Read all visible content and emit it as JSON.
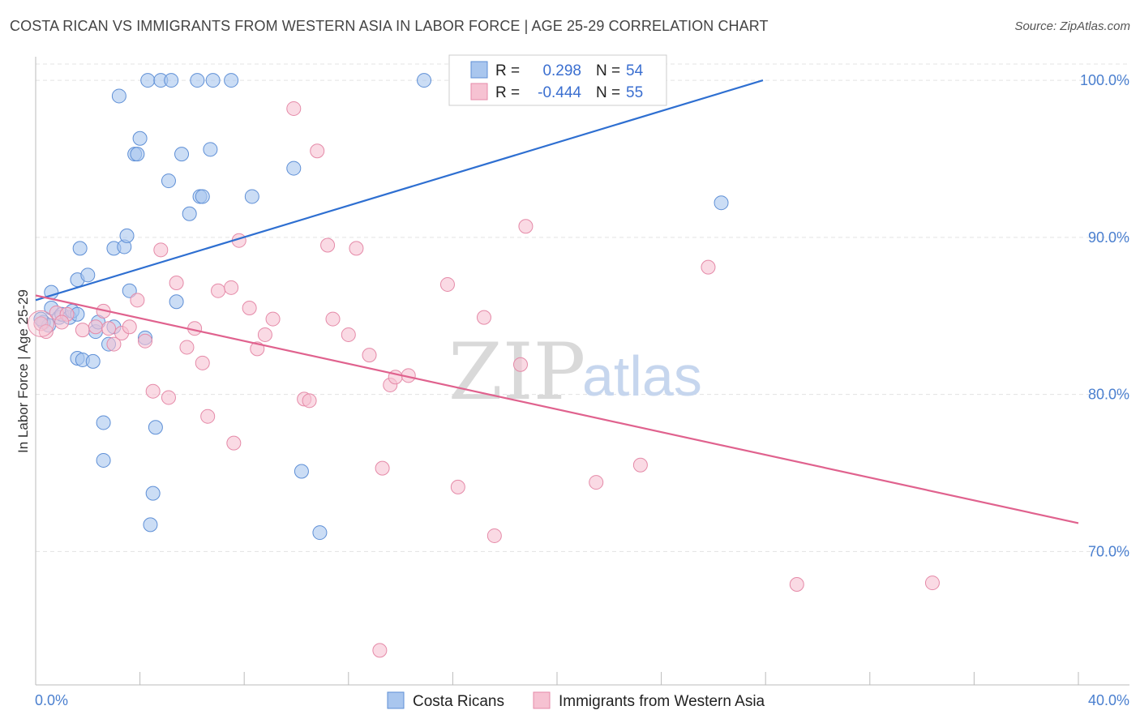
{
  "header": {
    "title": "COSTA RICAN VS IMMIGRANTS FROM WESTERN ASIA IN LABOR FORCE | AGE 25-29 CORRELATION CHART",
    "source": "Source: ZipAtlas.com"
  },
  "watermark": {
    "zip": "ZIP",
    "atlas": "atlas"
  },
  "colors": {
    "blue_fill": "#a9c6ee",
    "blue_stroke": "#5e8fd6",
    "blue_line": "#2e6fd1",
    "pink_fill": "#f6c2d2",
    "pink_stroke": "#e58aa8",
    "pink_line": "#e0628e",
    "grid": "#e3e3e3",
    "tick_text": "#4a7fcf"
  },
  "legend": {
    "rows": [
      {
        "r_label": "R =",
        "r_value": "0.298",
        "n_label": "N =",
        "n_value": "54"
      },
      {
        "r_label": "R =",
        "r_value": "-0.444",
        "n_label": "N =",
        "n_value": "55"
      }
    ]
  },
  "chart_data": {
    "type": "scatter",
    "title": "COSTA RICAN VS IMMIGRANTS FROM WESTERN ASIA IN LABOR FORCE | AGE 25-29 CORRELATION CHART",
    "xlabel": "",
    "ylabel": "In Labor Force | Age 25-29",
    "xlim": [
      0,
      40
    ],
    "ylim": [
      61.5,
      101.5
    ],
    "x_tick_labels": [
      "0.0%",
      "40.0%"
    ],
    "y_ticks": [
      70,
      80,
      90,
      100
    ],
    "y_tick_labels": [
      "70.0%",
      "80.0%",
      "90.0%",
      "100.0%"
    ],
    "grid": true,
    "legend_position": "top-center",
    "series": [
      {
        "name": "Costa Ricans",
        "r": 0.298,
        "n": 54,
        "trend": {
          "x": [
            0,
            27.9
          ],
          "y": [
            86.0,
            100.0
          ]
        },
        "points": [
          [
            0.3,
            84.6
          ],
          [
            0.5,
            84.4
          ],
          [
            0.6,
            85.5
          ],
          [
            0.6,
            86.5
          ],
          [
            0.9,
            84.9
          ],
          [
            1.0,
            85.1
          ],
          [
            1.3,
            84.9
          ],
          [
            1.4,
            85.3
          ],
          [
            1.6,
            85.1
          ],
          [
            1.6,
            82.3
          ],
          [
            1.6,
            87.3
          ],
          [
            1.7,
            89.3
          ],
          [
            1.8,
            82.2
          ],
          [
            2.0,
            87.6
          ],
          [
            2.2,
            82.1
          ],
          [
            2.3,
            84.0
          ],
          [
            2.4,
            84.6
          ],
          [
            2.6,
            75.8
          ],
          [
            2.6,
            78.2
          ],
          [
            2.8,
            83.2
          ],
          [
            3.0,
            84.3
          ],
          [
            3.0,
            89.3
          ],
          [
            3.2,
            99.0
          ],
          [
            3.4,
            89.4
          ],
          [
            3.5,
            90.1
          ],
          [
            3.6,
            86.6
          ],
          [
            3.8,
            95.3
          ],
          [
            3.9,
            95.3
          ],
          [
            4.0,
            96.3
          ],
          [
            4.2,
            83.6
          ],
          [
            4.3,
            100.0
          ],
          [
            4.4,
            71.7
          ],
          [
            4.5,
            73.7
          ],
          [
            4.6,
            77.9
          ],
          [
            4.8,
            100.0
          ],
          [
            5.1,
            93.6
          ],
          [
            5.2,
            100.0
          ],
          [
            5.4,
            85.9
          ],
          [
            5.6,
            95.3
          ],
          [
            5.9,
            91.5
          ],
          [
            6.2,
            100.0
          ],
          [
            6.3,
            92.6
          ],
          [
            6.4,
            92.6
          ],
          [
            6.7,
            95.6
          ],
          [
            6.8,
            100.0
          ],
          [
            7.5,
            100.0
          ],
          [
            8.3,
            92.6
          ],
          [
            9.9,
            94.4
          ],
          [
            10.2,
            75.1
          ],
          [
            10.9,
            71.2
          ],
          [
            14.9,
            100.0
          ],
          [
            16.2,
            100.0
          ],
          [
            26.3,
            92.2
          ],
          [
            0.2,
            84.8
          ]
        ]
      },
      {
        "name": "Immigrants from Western Asia",
        "r": -0.444,
        "n": 55,
        "trend": {
          "x": [
            0,
            40
          ],
          "y": [
            86.3,
            71.8
          ]
        },
        "points": [
          [
            0.2,
            84.5
          ],
          [
            0.8,
            85.2
          ],
          [
            1.2,
            85.1
          ],
          [
            1.8,
            84.1
          ],
          [
            2.3,
            84.3
          ],
          [
            2.6,
            85.3
          ],
          [
            3.0,
            83.2
          ],
          [
            3.3,
            83.9
          ],
          [
            3.6,
            84.3
          ],
          [
            3.9,
            86.0
          ],
          [
            4.2,
            83.4
          ],
          [
            4.5,
            80.2
          ],
          [
            4.8,
            89.2
          ],
          [
            5.1,
            79.8
          ],
          [
            5.4,
            87.1
          ],
          [
            5.8,
            83.0
          ],
          [
            6.1,
            84.2
          ],
          [
            6.4,
            82.0
          ],
          [
            6.6,
            78.6
          ],
          [
            7.0,
            86.6
          ],
          [
            7.5,
            86.8
          ],
          [
            7.6,
            76.9
          ],
          [
            7.8,
            89.8
          ],
          [
            8.2,
            85.5
          ],
          [
            8.5,
            82.9
          ],
          [
            8.8,
            83.8
          ],
          [
            9.1,
            84.8
          ],
          [
            9.9,
            98.2
          ],
          [
            10.3,
            79.7
          ],
          [
            10.5,
            79.6
          ],
          [
            10.8,
            95.5
          ],
          [
            11.2,
            89.5
          ],
          [
            11.4,
            84.8
          ],
          [
            12.0,
            83.8
          ],
          [
            12.3,
            89.3
          ],
          [
            12.8,
            82.5
          ],
          [
            13.2,
            63.7
          ],
          [
            13.3,
            75.3
          ],
          [
            13.6,
            80.6
          ],
          [
            13.8,
            81.1
          ],
          [
            14.3,
            81.2
          ],
          [
            15.8,
            87.0
          ],
          [
            16.2,
            74.1
          ],
          [
            17.2,
            84.9
          ],
          [
            17.6,
            71.0
          ],
          [
            18.6,
            81.9
          ],
          [
            18.8,
            90.7
          ],
          [
            21.5,
            74.4
          ],
          [
            23.2,
            75.5
          ],
          [
            25.8,
            88.1
          ],
          [
            29.2,
            67.9
          ],
          [
            34.4,
            68.0
          ],
          [
            0.4,
            84.0
          ],
          [
            1.0,
            84.6
          ],
          [
            2.8,
            84.2
          ]
        ]
      }
    ]
  },
  "bottom_legend": {
    "items": [
      "Costa Ricans",
      "Immigrants from Western Asia"
    ]
  }
}
